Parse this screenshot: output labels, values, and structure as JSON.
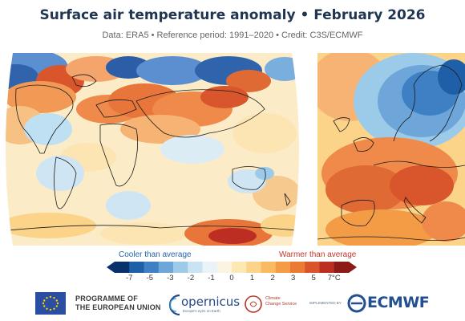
{
  "title": "Surface air temperature anomaly • February 2026",
  "subtitle": "Data: ERA5 • Reference period: 1991–2020 • Credit: C3S/ECMWF",
  "maps": {
    "world": "world-temperature-anomaly-map",
    "europe": "europe-temperature-anomaly-map"
  },
  "legend": {
    "cooler_label": "Cooler than average",
    "warmer_label": "Warmer than average",
    "ticks": [
      "-7",
      "-5",
      "-3",
      "-2",
      "-1",
      "0",
      "1",
      "2",
      "3",
      "5",
      "7°C"
    ],
    "colors": [
      "#08306b",
      "#1f5fa8",
      "#3f7fc3",
      "#6ea6d9",
      "#9ccbea",
      "#c9e3f3",
      "#e9f3f8",
      "#fbf4e2",
      "#fde7b3",
      "#fbd48a",
      "#f9bb62",
      "#f49b45",
      "#ea7a34",
      "#d9542a",
      "#bc2e22",
      "#8c1a17"
    ]
  },
  "footer": {
    "eu_line1": "PROGRAMME OF",
    "eu_line2": "THE EUROPEAN UNION",
    "copernicus": "opernicus",
    "copernicus_sub": "Europe's eyes on Earth",
    "c3s_line1": "Climate",
    "c3s_line2": "Change Service",
    "implemented": "IMPLEMENTED BY",
    "ecmwf": "ECMWF"
  }
}
